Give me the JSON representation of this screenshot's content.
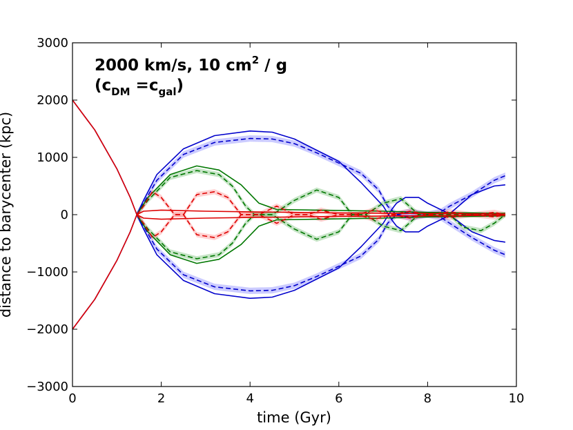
{
  "chart_data": {
    "type": "line",
    "xlabel": "time (Gyr)",
    "ylabel": "distance to barycenter (kpc)",
    "xlim": [
      0,
      10
    ],
    "ylim": [
      -3000,
      3000
    ],
    "xticks": [
      0,
      2,
      4,
      6,
      8,
      10
    ],
    "yticks": [
      -3000,
      -2000,
      -1000,
      0,
      1000,
      2000,
      3000
    ],
    "xtick_labels": [
      "0",
      "2",
      "4",
      "6",
      "8",
      "10"
    ],
    "ytick_labels": [
      "−3000",
      "−2000",
      "−1000",
      "0",
      "1000",
      "2000",
      "3000"
    ],
    "annotation": {
      "line1_main": "2000 km/s, 10 cm",
      "line1_sup": "2",
      "line1_tail": " / g",
      "line2_open": "(c",
      "line2_sub1": "DM",
      "line2_mid": " =c",
      "line2_sub2": "gal",
      "line2_close": ")"
    },
    "series": [
      {
        "name": "blue solid upper",
        "color": "#0000cc",
        "style": "solid",
        "x": [
          0,
          0.5,
          1.0,
          1.3,
          1.45,
          1.6,
          1.9,
          2.5,
          3.2,
          4.0,
          4.5,
          5.0,
          6.0,
          6.5,
          7.0,
          7.2,
          7.3,
          7.5,
          7.8,
          8.0,
          8.4,
          9.0,
          9.5,
          9.75
        ],
        "y": [
          2000,
          1480,
          800,
          300,
          0,
          250,
          700,
          1150,
          1380,
          1460,
          1440,
          1320,
          930,
          560,
          150,
          -100,
          -200,
          -300,
          -300,
          -200,
          -50,
          350,
          500,
          520
        ]
      },
      {
        "name": "blue solid lower",
        "color": "#0000cc",
        "style": "solid",
        "x": [
          0,
          0.5,
          1.0,
          1.3,
          1.45,
          1.6,
          1.9,
          2.5,
          3.2,
          4.0,
          4.5,
          5.0,
          6.0,
          6.5,
          7.0,
          7.2,
          7.3,
          7.5,
          7.8,
          8.0,
          8.4,
          9.0,
          9.5,
          9.75
        ],
        "y": [
          -2000,
          -1480,
          -800,
          -300,
          0,
          -250,
          -700,
          -1150,
          -1380,
          -1460,
          -1440,
          -1320,
          -930,
          -560,
          -150,
          100,
          200,
          300,
          300,
          200,
          50,
          -300,
          -450,
          -480
        ]
      },
      {
        "name": "blue dashed upper",
        "color": "#0000cc",
        "style": "dashed",
        "x": [
          1.45,
          1.6,
          1.9,
          2.5,
          3.2,
          4.0,
          4.5,
          5.0,
          5.5,
          6.0,
          6.5,
          6.9,
          7.1,
          7.3,
          7.6,
          8.0,
          8.3,
          8.5,
          9.0,
          9.5,
          9.75
        ],
        "y": [
          0,
          200,
          600,
          1050,
          1260,
          1330,
          1320,
          1240,
          1080,
          900,
          720,
          430,
          150,
          0,
          -50,
          0,
          50,
          150,
          350,
          600,
          680
        ]
      },
      {
        "name": "blue dashed lower",
        "color": "#0000cc",
        "style": "dashed",
        "x": [
          1.45,
          1.6,
          1.9,
          2.5,
          3.2,
          4.0,
          4.5,
          5.0,
          5.5,
          6.0,
          6.5,
          6.9,
          7.1,
          7.3,
          7.6,
          8.0,
          8.3,
          8.5,
          9.0,
          9.5,
          9.75
        ],
        "y": [
          0,
          -200,
          -600,
          -1050,
          -1260,
          -1330,
          -1320,
          -1240,
          -1080,
          -900,
          -720,
          -430,
          -150,
          0,
          50,
          0,
          -50,
          -150,
          -400,
          -620,
          -700
        ]
      },
      {
        "name": "green solid upper",
        "color": "#007700",
        "style": "solid",
        "x": [
          1.45,
          1.7,
          2.2,
          2.8,
          3.3,
          3.8,
          4.2,
          4.6,
          5.5,
          7.0,
          8.0,
          9.0,
          9.75
        ],
        "y": [
          0,
          300,
          700,
          850,
          780,
          520,
          200,
          90,
          80,
          60,
          40,
          30,
          20
        ]
      },
      {
        "name": "green solid lower",
        "color": "#007700",
        "style": "solid",
        "x": [
          1.45,
          1.7,
          2.2,
          2.8,
          3.3,
          3.8,
          4.2,
          4.6,
          5.5,
          7.0,
          8.0,
          9.0,
          9.75
        ],
        "y": [
          0,
          -300,
          -700,
          -850,
          -780,
          -520,
          -200,
          -90,
          -80,
          -60,
          -40,
          -30,
          -20
        ]
      },
      {
        "name": "green dashed upper",
        "color": "#007700",
        "style": "dashed",
        "x": [
          1.45,
          1.7,
          2.2,
          2.8,
          3.3,
          3.6,
          3.9,
          4.1,
          4.5,
          5.0,
          5.5,
          6.0,
          6.3,
          6.6,
          7.0,
          7.4,
          7.8,
          8.1,
          8.5,
          9.0,
          9.4,
          9.75
        ],
        "y": [
          0,
          250,
          650,
          770,
          700,
          500,
          150,
          0,
          0,
          250,
          430,
          300,
          0,
          0,
          200,
          280,
          0,
          0,
          0,
          0,
          0,
          0
        ]
      },
      {
        "name": "green dashed lower",
        "color": "#007700",
        "style": "dashed",
        "x": [
          1.45,
          1.7,
          2.2,
          2.8,
          3.3,
          3.6,
          3.9,
          4.1,
          4.5,
          5.0,
          5.5,
          6.0,
          6.3,
          6.6,
          7.0,
          7.4,
          7.8,
          8.1,
          8.5,
          8.8,
          9.2,
          9.5,
          9.75
        ],
        "y": [
          0,
          -250,
          -650,
          -770,
          -700,
          -500,
          -150,
          0,
          0,
          -250,
          -430,
          -300,
          0,
          0,
          -200,
          -280,
          0,
          0,
          0,
          -220,
          -280,
          -150,
          0
        ]
      },
      {
        "name": "red solid upper",
        "color": "#dd0000",
        "style": "solid",
        "x": [
          0,
          0.5,
          1.0,
          1.3,
          1.45,
          1.6,
          2.0,
          3.0,
          4.0,
          5.0,
          6.0,
          7.0,
          8.0,
          9.0,
          9.75
        ],
        "y": [
          2000,
          1480,
          800,
          300,
          0,
          60,
          80,
          60,
          50,
          40,
          30,
          25,
          20,
          15,
          10
        ]
      },
      {
        "name": "red solid lower",
        "color": "#dd0000",
        "style": "solid",
        "x": [
          0,
          0.5,
          1.0,
          1.3,
          1.45,
          1.6,
          2.0,
          3.0,
          4.0,
          5.0,
          6.0,
          7.0,
          8.0,
          9.0,
          9.75
        ],
        "y": [
          -2000,
          -1480,
          -800,
          -300,
          0,
          -60,
          -80,
          -60,
          -50,
          -40,
          -30,
          -25,
          -20,
          -15,
          -10
        ]
      },
      {
        "name": "red dashed upper",
        "color": "#dd0000",
        "style": "dashed",
        "x": [
          1.45,
          1.6,
          1.8,
          2.0,
          2.3,
          2.5,
          2.8,
          3.2,
          3.5,
          3.8,
          4.2,
          4.6,
          5.0,
          5.3,
          5.6,
          6.0,
          6.4,
          6.8,
          7.2,
          7.6,
          8.0,
          8.5,
          9.0,
          9.5,
          9.75
        ],
        "y": [
          0,
          150,
          400,
          300,
          0,
          0,
          350,
          400,
          300,
          0,
          0,
          150,
          0,
          0,
          80,
          0,
          0,
          80,
          0,
          60,
          0,
          50,
          0,
          40,
          0
        ]
      },
      {
        "name": "red dashed lower",
        "color": "#dd0000",
        "style": "dashed",
        "x": [
          1.45,
          1.6,
          1.8,
          2.0,
          2.3,
          2.5,
          2.8,
          3.2,
          3.5,
          3.8,
          4.2,
          4.6,
          5.0,
          5.3,
          5.6,
          6.0,
          6.4,
          6.8,
          7.2,
          7.6,
          8.0,
          8.5,
          9.0,
          9.5,
          9.75
        ],
        "y": [
          0,
          -150,
          -400,
          -300,
          0,
          0,
          -350,
          -400,
          -300,
          0,
          0,
          -150,
          0,
          0,
          -80,
          0,
          0,
          -80,
          0,
          -60,
          0,
          -50,
          0,
          -40,
          0
        ]
      }
    ],
    "bands": [
      {
        "of": "blue dashed upper",
        "color": "#5555ff",
        "halfwidth": 55
      },
      {
        "of": "blue dashed lower",
        "color": "#5555ff",
        "halfwidth": 55
      },
      {
        "of": "green dashed upper",
        "color": "#44aa44",
        "halfwidth": 45
      },
      {
        "of": "green dashed lower",
        "color": "#44aa44",
        "halfwidth": 45
      },
      {
        "of": "red dashed upper",
        "color": "#ff6666",
        "halfwidth": 45
      },
      {
        "of": "red dashed lower",
        "color": "#ff6666",
        "halfwidth": 45
      }
    ]
  }
}
